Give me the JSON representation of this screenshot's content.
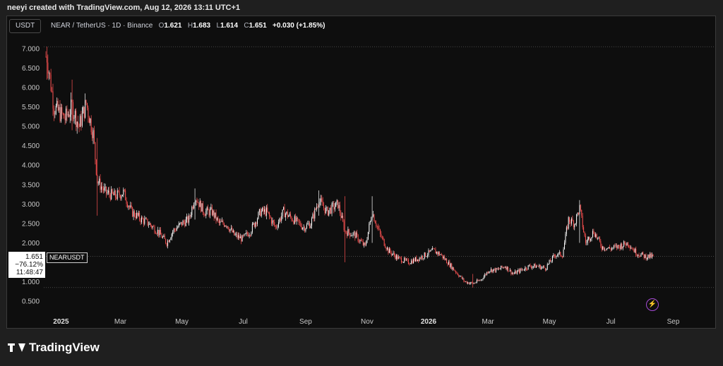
{
  "header": "neeyi created with TradingView.com, Aug 12, 2026 13:11 UTC+1",
  "unit_button": "USDT",
  "legend": {
    "symbol": "NEAR / TetherUS · 1D · Binance",
    "o_label": "O",
    "o_value": "1.621",
    "h_label": "H",
    "h_value": "1.683",
    "l_label": "L",
    "l_value": "1.614",
    "c_label": "C",
    "c_value": "1.651",
    "change": "+0.030 (+1.85%)"
  },
  "price_label": {
    "price": "1.651",
    "change_pct": "−76.12%",
    "countdown": "11:48:47",
    "symbol_tag": "NEARUSDT"
  },
  "footer": {
    "brand": "TradingView"
  },
  "colors": {
    "up": "#ffffff",
    "down": "#ff5252",
    "background": "#0e0e0e",
    "accent": "#a64bd6"
  },
  "icons": {
    "alert": "lightning-icon",
    "logo": "tradingview-logo-icon"
  },
  "chart_data": {
    "type": "candlestick",
    "symbol": "NEARUSDT",
    "interval": "1D",
    "x_start": "2024-12-17",
    "x_end": "2026-08-12",
    "ylim": [
      0.3,
      7.3
    ],
    "yticks": [
      "7.000",
      "6.500",
      "6.000",
      "5.500",
      "5.000",
      "4.500",
      "4.000",
      "3.500",
      "3.000",
      "2.500",
      "2.000",
      "1.500",
      "1.000",
      "0.500"
    ],
    "xticks": [
      {
        "label": "2025",
        "date": "2025-01-01",
        "bold": true
      },
      {
        "label": "Mar",
        "date": "2025-03-01"
      },
      {
        "label": "May",
        "date": "2025-05-01"
      },
      {
        "label": "Jul",
        "date": "2025-07-01"
      },
      {
        "label": "Sep",
        "date": "2025-09-01"
      },
      {
        "label": "Nov",
        "date": "2025-11-01"
      },
      {
        "label": "2026",
        "date": "2026-01-01",
        "bold": true
      },
      {
        "label": "Mar",
        "date": "2026-03-01"
      },
      {
        "label": "May",
        "date": "2026-05-01"
      },
      {
        "label": "Jul",
        "date": "2026-07-01"
      },
      {
        "label": "Sep",
        "date": "2026-09-01"
      }
    ],
    "reference_lines": [
      7.05,
      1.651,
      0.85
    ],
    "last_close": 1.651,
    "closes": [
      {
        "date": "2024-12-18",
        "close": 6.8
      },
      {
        "date": "2024-12-25",
        "close": 5.5
      },
      {
        "date": "2025-01-05",
        "close": 5.2
      },
      {
        "date": "2025-01-12",
        "close": 5.5
      },
      {
        "date": "2025-01-19",
        "close": 5.0
      },
      {
        "date": "2025-01-26",
        "close": 5.6
      },
      {
        "date": "2025-02-02",
        "close": 4.8
      },
      {
        "date": "2025-02-06",
        "close": 3.6
      },
      {
        "date": "2025-02-14",
        "close": 3.3
      },
      {
        "date": "2025-02-24",
        "close": 3.2
      },
      {
        "date": "2025-03-04",
        "close": 3.3
      },
      {
        "date": "2025-03-12",
        "close": 2.8
      },
      {
        "date": "2025-03-22",
        "close": 2.6
      },
      {
        "date": "2025-03-29",
        "close": 2.5
      },
      {
        "date": "2025-04-07",
        "close": 2.3
      },
      {
        "date": "2025-04-16",
        "close": 2.0
      },
      {
        "date": "2025-04-22",
        "close": 2.3
      },
      {
        "date": "2025-05-01",
        "close": 2.5
      },
      {
        "date": "2025-05-08",
        "close": 2.6
      },
      {
        "date": "2025-05-14",
        "close": 3.2
      },
      {
        "date": "2025-05-23",
        "close": 2.8
      },
      {
        "date": "2025-05-31",
        "close": 2.8
      },
      {
        "date": "2025-06-07",
        "close": 2.5
      },
      {
        "date": "2025-06-14",
        "close": 2.5
      },
      {
        "date": "2025-06-22",
        "close": 2.2
      },
      {
        "date": "2025-06-30",
        "close": 2.1
      },
      {
        "date": "2025-07-08",
        "close": 2.3
      },
      {
        "date": "2025-07-18",
        "close": 2.8
      },
      {
        "date": "2025-07-24",
        "close": 2.8
      },
      {
        "date": "2025-08-02",
        "close": 2.4
      },
      {
        "date": "2025-08-10",
        "close": 2.8
      },
      {
        "date": "2025-08-20",
        "close": 2.6
      },
      {
        "date": "2025-08-30",
        "close": 2.4
      },
      {
        "date": "2025-09-06",
        "close": 2.5
      },
      {
        "date": "2025-09-14",
        "close": 3.1
      },
      {
        "date": "2025-09-22",
        "close": 2.8
      },
      {
        "date": "2025-10-03",
        "close": 3.0
      },
      {
        "date": "2025-10-10",
        "close": 2.3
      },
      {
        "date": "2025-10-20",
        "close": 2.2
      },
      {
        "date": "2025-10-30",
        "close": 1.9
      },
      {
        "date": "2025-11-06",
        "close": 2.8
      },
      {
        "date": "2025-11-14",
        "close": 2.2
      },
      {
        "date": "2025-11-22",
        "close": 1.8
      },
      {
        "date": "2025-12-02",
        "close": 1.6
      },
      {
        "date": "2025-12-12",
        "close": 1.5
      },
      {
        "date": "2025-12-22",
        "close": 1.6
      },
      {
        "date": "2026-01-06",
        "close": 1.8
      },
      {
        "date": "2026-01-13",
        "close": 1.7
      },
      {
        "date": "2026-01-20",
        "close": 1.5
      },
      {
        "date": "2026-01-30",
        "close": 1.2
      },
      {
        "date": "2026-02-06",
        "close": 1.0
      },
      {
        "date": "2026-02-14",
        "close": 0.95
      },
      {
        "date": "2026-02-22",
        "close": 1.05
      },
      {
        "date": "2026-03-02",
        "close": 1.3
      },
      {
        "date": "2026-03-10",
        "close": 1.3
      },
      {
        "date": "2026-03-18",
        "close": 1.4
      },
      {
        "date": "2026-03-26",
        "close": 1.2
      },
      {
        "date": "2026-04-03",
        "close": 1.3
      },
      {
        "date": "2026-04-11",
        "close": 1.4
      },
      {
        "date": "2026-04-19",
        "close": 1.4
      },
      {
        "date": "2026-04-27",
        "close": 1.35
      },
      {
        "date": "2026-05-07",
        "close": 1.7
      },
      {
        "date": "2026-05-14",
        "close": 1.7
      },
      {
        "date": "2026-05-20",
        "close": 2.6
      },
      {
        "date": "2026-05-26",
        "close": 2.5
      },
      {
        "date": "2026-05-31",
        "close": 2.9
      },
      {
        "date": "2026-06-06",
        "close": 2.0
      },
      {
        "date": "2026-06-14",
        "close": 2.3
      },
      {
        "date": "2026-06-22",
        "close": 1.9
      },
      {
        "date": "2026-06-30",
        "close": 1.85
      },
      {
        "date": "2026-07-08",
        "close": 1.9
      },
      {
        "date": "2026-07-18",
        "close": 2.0
      },
      {
        "date": "2026-07-26",
        "close": 1.75
      },
      {
        "date": "2026-08-04",
        "close": 1.65
      },
      {
        "date": "2026-08-12",
        "close": 1.651
      }
    ],
    "spikes": [
      {
        "date": "2024-12-18",
        "high": 7.05,
        "low": 6.2
      },
      {
        "date": "2025-01-12",
        "high": 6.2,
        "low": 4.9
      },
      {
        "date": "2025-02-06",
        "high": 4.7,
        "low": 2.7
      },
      {
        "date": "2025-05-14",
        "high": 3.4,
        "low": 2.6
      },
      {
        "date": "2025-09-14",
        "high": 3.35,
        "low": 2.7
      },
      {
        "date": "2025-10-10",
        "high": 3.2,
        "low": 1.5
      },
      {
        "date": "2025-11-06",
        "high": 3.2,
        "low": 2.0
      },
      {
        "date": "2026-02-14",
        "high": 1.2,
        "low": 0.85
      },
      {
        "date": "2026-05-31",
        "high": 3.1,
        "low": 2.0
      }
    ]
  }
}
